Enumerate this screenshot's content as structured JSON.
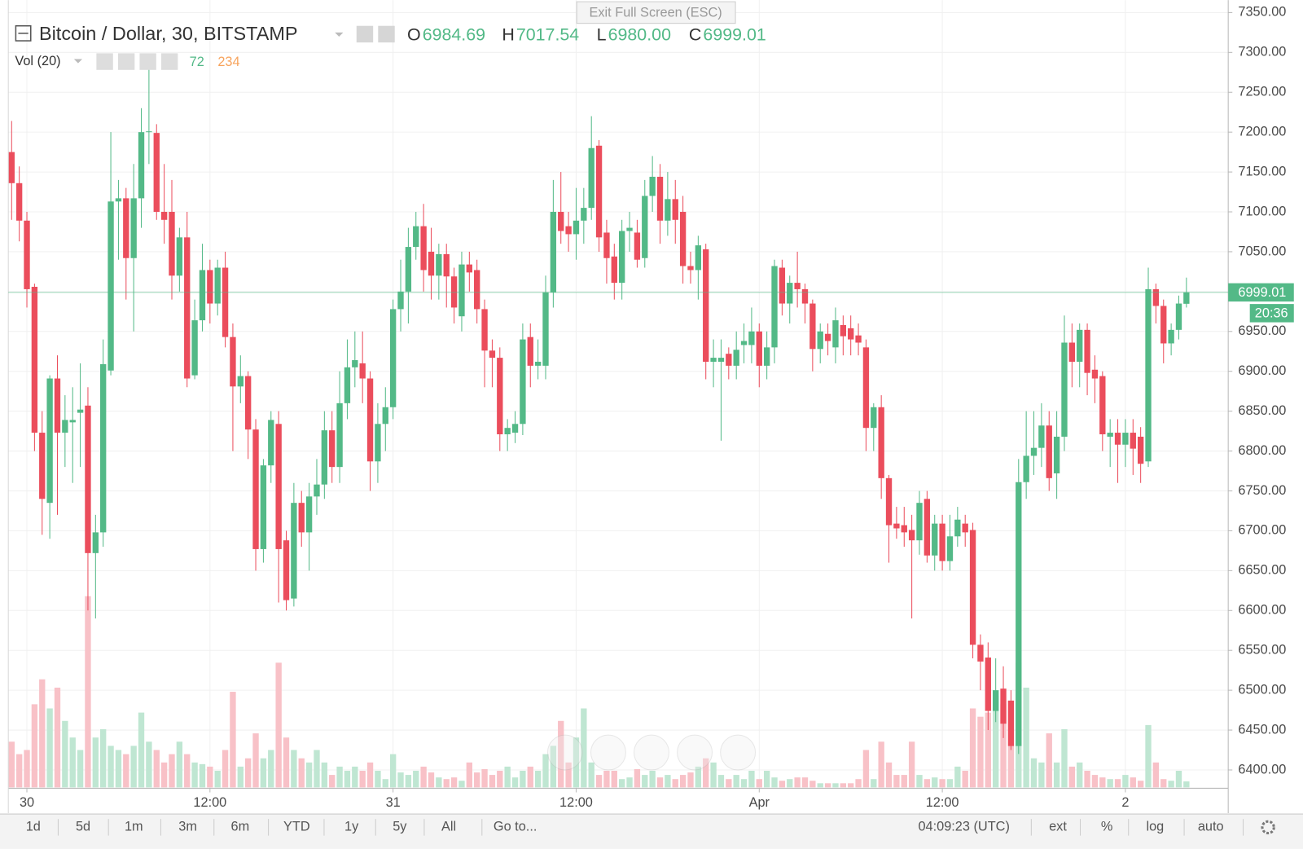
{
  "chart_data": {
    "type": "candlestick",
    "title": "Bitcoin / Dollar, 30, BITSTAMP",
    "ohlc_names": [
      "O",
      "H",
      "L",
      "C"
    ],
    "ohlc_labels": [
      "6984.69",
      "7017.54",
      "6980.00",
      "6999.01"
    ],
    "volume_title": "Vol (20)",
    "volume_ma_last": 234,
    "countdown": "20:36",
    "up_color": "#53b987",
    "down_color": "#eb4d5c",
    "volume_up_color": "#bfe6d2",
    "volume_down_color": "#f8c1c7",
    "volume_ma_color": "#f7a35c",
    "grid": true,
    "categories": [
      null,
      null,
      "30",
      null,
      null,
      null,
      null,
      null,
      null,
      null,
      null,
      null,
      null,
      null,
      null,
      null,
      null,
      null,
      null,
      null,
      null,
      null,
      null,
      null,
      null,
      null,
      "12:00",
      null,
      null,
      null,
      null,
      null,
      null,
      null,
      null,
      null,
      null,
      null,
      null,
      null,
      null,
      null,
      null,
      null,
      null,
      null,
      null,
      null,
      null,
      null,
      "31",
      null,
      null,
      null,
      null,
      null,
      null,
      null,
      null,
      null,
      null,
      null,
      null,
      null,
      null,
      null,
      null,
      null,
      null,
      null,
      null,
      null,
      null,
      null,
      "12:00",
      null,
      null,
      null,
      null,
      null,
      null,
      null,
      null,
      null,
      null,
      null,
      null,
      null,
      null,
      null,
      null,
      null,
      null,
      null,
      null,
      null,
      null,
      null,
      "Apr",
      null,
      null,
      null,
      null,
      null,
      null,
      null,
      null,
      null,
      null,
      null,
      null,
      null,
      null,
      null,
      null,
      null,
      null,
      null,
      null,
      null,
      null,
      null,
      "12:00",
      null,
      null,
      null,
      null,
      null,
      null,
      null,
      null,
      null,
      null,
      null,
      null,
      null,
      null,
      null,
      null,
      null,
      null,
      null,
      null,
      null,
      null,
      null,
      "2",
      null,
      null,
      null,
      null,
      null,
      null,
      null,
      null
    ],
    "open": [
      7175,
      7136,
      7089,
      7006,
      6823,
      6735,
      6891,
      6823,
      6836,
      6848,
      6857,
      6672,
      6698,
      6901,
      7113,
      7117,
      7042,
      7117,
      7200,
      7199,
      7100,
      7100,
      7020,
      7068,
      6895,
      6964,
      7027,
      6985,
      7030,
      6943,
      6881,
      6894,
      6827,
      6677,
      6782,
      6834,
      6688,
      6615,
      6735,
      6698,
      6743,
      6758,
      6826,
      6780,
      6860,
      6905,
      6910,
      6891,
      6787,
      6834,
      6855,
      6978,
      7000,
      7056,
      7082,
      7050,
      7020,
      7047,
      7019,
      6969,
      7034,
      7027,
      6978,
      6926,
      6917,
      6821,
      6823,
      6834,
      6943,
      6907,
      6907,
      6999,
      7100,
      7082,
      7072,
      7089,
      7105,
      7183,
      7074,
      7044,
      7011,
      7076,
      7074,
      7042,
      7120,
      7144,
      7089,
      7116,
      7100,
      7032,
      7027,
      7053,
      6912,
      6912,
      6922,
      6907,
      6933,
      6933,
      6950,
      6907,
      6930,
      7030,
      6985,
      7011,
      7003,
      6985,
      6928,
      6947,
      6930,
      6958,
      6954,
      6945,
      6930,
      6829,
      6855,
      6766,
      6709,
      6707,
      6701,
      6688,
      6740,
      6669,
      6709,
      6662,
      6693,
      6709,
      6701,
      6557,
      6541,
      6474,
      6502,
      6487,
      6430,
      6761,
      6794,
      6804,
      6832,
      6772,
      6818,
      6936,
      6912,
      6952,
      6902,
      6894,
      6818,
      6823,
      6808,
      6823,
      6818,
      6787,
      7003,
      6982,
      6935,
      6952,
      6984.69
    ],
    "high": [
      7214,
      7157,
      7100,
      7010,
      6850,
      6895,
      6920,
      6870,
      6880,
      6910,
      6880,
      6720,
      6940,
      7200,
      7140,
      7130,
      7160,
      7230,
      7290,
      7210,
      7160,
      7140,
      7080,
      7100,
      6990,
      7060,
      7040,
      7040,
      7050,
      6960,
      6920,
      6900,
      6840,
      6790,
      6850,
      6850,
      6700,
      6760,
      6750,
      6760,
      6790,
      6850,
      6850,
      6900,
      6940,
      6950,
      6950,
      6900,
      6860,
      6880,
      6990,
      7040,
      7080,
      7100,
      7110,
      7080,
      7060,
      7060,
      7030,
      7050,
      7050,
      7040,
      6990,
      6940,
      6930,
      6840,
      6850,
      6960,
      6960,
      6940,
      7020,
      7140,
      7150,
      7100,
      7130,
      7130,
      7220,
      7190,
      7090,
      7060,
      7090,
      7100,
      7090,
      7140,
      7170,
      7160,
      7150,
      7140,
      7120,
      7050,
      7070,
      7060,
      6940,
      6940,
      6930,
      6950,
      6960,
      6980,
      6960,
      6950,
      7040,
      7040,
      7020,
      7050,
      7010,
      6990,
      6960,
      6960,
      6980,
      6970,
      6970,
      6960,
      6940,
      6860,
      6870,
      6770,
      6730,
      6730,
      6720,
      6750,
      6750,
      6720,
      6720,
      6720,
      6730,
      6720,
      6710,
      6570,
      6560,
      6540,
      6530,
      6500,
      6790,
      6850,
      6850,
      6860,
      6850,
      6850,
      6970,
      6960,
      6960,
      6960,
      6920,
      6900,
      6840,
      6840,
      6840,
      6840,
      6830,
      7030,
      7010,
      6990,
      6960,
      6995,
      7017.54
    ],
    "low": [
      7090,
      7063,
      6980,
      6800,
      6695,
      6690,
      6720,
      6780,
      6760,
      6780,
      6600,
      6590,
      6680,
      6895,
      7040,
      6990,
      6950,
      7080,
      7160,
      7090,
      7060,
      6990,
      7000,
      6880,
      6890,
      6950,
      6960,
      6970,
      6930,
      6800,
      6860,
      6790,
      6650,
      6660,
      6760,
      6610,
      6600,
      6605,
      6680,
      6650,
      6720,
      6740,
      6760,
      6760,
      6840,
      6880,
      6860,
      6750,
      6760,
      6800,
      6840,
      6950,
      6960,
      7040,
      7000,
      6990,
      6990,
      6980,
      6960,
      6950,
      7000,
      6960,
      6880,
      6880,
      6800,
      6800,
      6810,
      6820,
      6880,
      6890,
      6890,
      6980,
      7060,
      7050,
      7040,
      7060,
      7090,
      7050,
      7010,
      6990,
      6990,
      7050,
      7030,
      7030,
      7100,
      7060,
      7070,
      7060,
      7010,
      7010,
      6990,
      6890,
      6880,
      6813,
      6890,
      6890,
      6910,
      6910,
      6880,
      6890,
      6910,
      6970,
      6960,
      6980,
      6960,
      6900,
      6910,
      6920,
      6910,
      6920,
      6920,
      6920,
      6800,
      6800,
      6740,
      6660,
      6690,
      6680,
      6590,
      6670,
      6660,
      6650,
      6650,
      6650,
      6680,
      6680,
      6540,
      6500,
      6450,
      6460,
      6440,
      6425,
      6420,
      6740,
      6770,
      6780,
      6750,
      6740,
      6800,
      6880,
      6880,
      6870,
      6860,
      6800,
      6780,
      6760,
      6780,
      6770,
      6760,
      6780,
      6960,
      6910,
      6920,
      6940,
      6980
    ],
    "close": [
      7136,
      7089,
      7003,
      6823,
      6740,
      6891,
      6823,
      6839,
      6839,
      6852,
      6672,
      6698,
      6909,
      7113,
      7117,
      7042,
      7117,
      7200,
      7201,
      7100,
      7090,
      7020,
      7068,
      6891,
      6964,
      7027,
      6985,
      7030,
      6943,
      6881,
      6894,
      6827,
      6677,
      6782,
      6839,
      6677,
      6613,
      6735,
      6698,
      6743,
      6758,
      6826,
      6780,
      6860,
      6905,
      6914,
      6891,
      6787,
      6834,
      6855,
      6978,
      7000,
      7056,
      7082,
      7027,
      7020,
      7047,
      7019,
      6980,
      7034,
      7024,
      6978,
      6926,
      6917,
      6821,
      6829,
      6834,
      6940,
      6907,
      6912,
      6999,
      7100,
      7076,
      7072,
      7089,
      7105,
      7180,
      7068,
      7042,
      7011,
      7076,
      7080,
      7040,
      7120,
      7144,
      7089,
      7116,
      7090,
      7032,
      7027,
      7058,
      6912,
      6917,
      6917,
      6907,
      6927,
      6938,
      6950,
      6907,
      6930,
      7032,
      6985,
      7011,
      7003,
      6985,
      6928,
      6950,
      6938,
      6964,
      6944,
      6940,
      6936,
      6829,
      6855,
      6766,
      6707,
      6703,
      6698,
      6688,
      6735,
      6669,
      6709,
      6662,
      6693,
      6714,
      6698,
      6557,
      6536,
      6474,
      6500,
      6458,
      6430,
      6761,
      6794,
      6804,
      6832,
      6766,
      6818,
      6936,
      6912,
      6952,
      6898,
      6891,
      6821,
      6823,
      6808,
      6823,
      6803,
      6784,
      7003,
      6982,
      6935,
      6952,
      6985,
      6999.01
    ],
    "volume": [
      550,
      400,
      450,
      1000,
      1300,
      950,
      1200,
      800,
      600,
      450,
      2300,
      600,
      700,
      500,
      450,
      400,
      500,
      900,
      550,
      450,
      300,
      400,
      550,
      400,
      300,
      280,
      250,
      200,
      450,
      1150,
      250,
      350,
      650,
      350,
      450,
      1500,
      600,
      450,
      350,
      300,
      450,
      300,
      150,
      250,
      200,
      250,
      200,
      300,
      200,
      100,
      400,
      180,
      150,
      200,
      250,
      180,
      120,
      100,
      120,
      80,
      300,
      180,
      220,
      150,
      200,
      250,
      120,
      200,
      250,
      200,
      400,
      500,
      800,
      300,
      600,
      950,
      300,
      150,
      200,
      200,
      100,
      120,
      220,
      150,
      200,
      120,
      150,
      100,
      150,
      180,
      250,
      350,
      300,
      150,
      100,
      150,
      100,
      200,
      100,
      200,
      120,
      80,
      100,
      120,
      120,
      80,
      50,
      50,
      50,
      50,
      50,
      100,
      450,
      100,
      550,
      300,
      150,
      150,
      550,
      150,
      100,
      120,
      100,
      100,
      250,
      200,
      950,
      850,
      900,
      1100,
      1000,
      500,
      1500,
      1200,
      350,
      300,
      650,
      300,
      700,
      250,
      300,
      200,
      150,
      120,
      100,
      100,
      150,
      120,
      80,
      750,
      300,
      100,
      80,
      200,
      72
    ],
    "volume_ylim": [
      0,
      3000
    ],
    "ylim": [
      6400,
      7350
    ],
    "yticks": [
      {
        "value": 6400,
        "label": "6400.00"
      },
      {
        "value": 6450,
        "label": "6450.00"
      },
      {
        "value": 6500,
        "label": "6500.00"
      },
      {
        "value": 6550,
        "label": "6550.00"
      },
      {
        "value": 6600,
        "label": "6600.00"
      },
      {
        "value": 6650,
        "label": "6650.00"
      },
      {
        "value": 6700,
        "label": "6700.00"
      },
      {
        "value": 6750,
        "label": "6750.00"
      },
      {
        "value": 6800,
        "label": "6800.00"
      },
      {
        "value": 6850,
        "label": "6850.00"
      },
      {
        "value": 6900,
        "label": "6900.00"
      },
      {
        "value": 6950,
        "label": "6950.00"
      },
      {
        "value": 7000,
        "label": "7000.00"
      },
      {
        "value": 7050,
        "label": "7050.00"
      },
      {
        "value": 7100,
        "label": "7100.00"
      },
      {
        "value": 7150,
        "label": "7150.00"
      },
      {
        "value": 7200,
        "label": "7200.00"
      },
      {
        "value": 7250,
        "label": "7250.00"
      },
      {
        "value": 7300,
        "label": "7300.00"
      },
      {
        "value": 7350,
        "label": "7350.00"
      }
    ]
  },
  "banner": "Exit Full Screen (ESC)",
  "toolbar": {
    "ranges": [
      "1d",
      "5d",
      "1m",
      "3m",
      "6m",
      "YTD",
      "1y",
      "5y",
      "All",
      "Go to..."
    ],
    "clock": "04:09:23 (UTC)",
    "options": [
      "ext",
      "%",
      "log",
      "auto"
    ]
  }
}
